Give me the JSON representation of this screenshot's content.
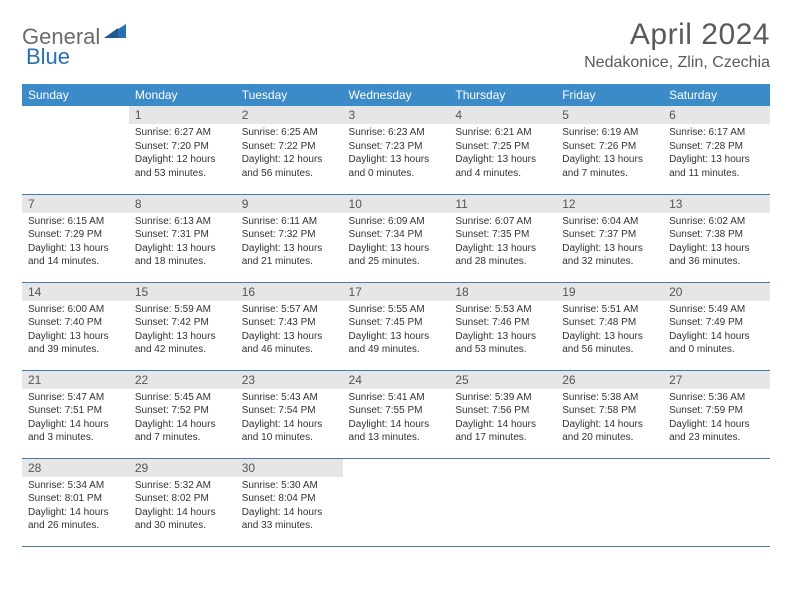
{
  "logo": {
    "general": "General",
    "blue": "Blue"
  },
  "title": "April 2024",
  "location": "Nedakonice, Zlin, Czechia",
  "colors": {
    "header_bg": "#3b8bc8",
    "header_text": "#ffffff",
    "daynum_bg": "#e6e6e6",
    "daynum_text": "#555555",
    "body_text": "#333333",
    "border": "#4a7ba8",
    "logo_gray": "#6b6b6b",
    "logo_blue": "#2a6fb5"
  },
  "weekdays": [
    "Sunday",
    "Monday",
    "Tuesday",
    "Wednesday",
    "Thursday",
    "Friday",
    "Saturday"
  ],
  "weeks": [
    [
      null,
      {
        "n": "1",
        "sr": "Sunrise: 6:27 AM",
        "ss": "Sunset: 7:20 PM",
        "d1": "Daylight: 12 hours",
        "d2": "and 53 minutes."
      },
      {
        "n": "2",
        "sr": "Sunrise: 6:25 AM",
        "ss": "Sunset: 7:22 PM",
        "d1": "Daylight: 12 hours",
        "d2": "and 56 minutes."
      },
      {
        "n": "3",
        "sr": "Sunrise: 6:23 AM",
        "ss": "Sunset: 7:23 PM",
        "d1": "Daylight: 13 hours",
        "d2": "and 0 minutes."
      },
      {
        "n": "4",
        "sr": "Sunrise: 6:21 AM",
        "ss": "Sunset: 7:25 PM",
        "d1": "Daylight: 13 hours",
        "d2": "and 4 minutes."
      },
      {
        "n": "5",
        "sr": "Sunrise: 6:19 AM",
        "ss": "Sunset: 7:26 PM",
        "d1": "Daylight: 13 hours",
        "d2": "and 7 minutes."
      },
      {
        "n": "6",
        "sr": "Sunrise: 6:17 AM",
        "ss": "Sunset: 7:28 PM",
        "d1": "Daylight: 13 hours",
        "d2": "and 11 minutes."
      }
    ],
    [
      {
        "n": "7",
        "sr": "Sunrise: 6:15 AM",
        "ss": "Sunset: 7:29 PM",
        "d1": "Daylight: 13 hours",
        "d2": "and 14 minutes."
      },
      {
        "n": "8",
        "sr": "Sunrise: 6:13 AM",
        "ss": "Sunset: 7:31 PM",
        "d1": "Daylight: 13 hours",
        "d2": "and 18 minutes."
      },
      {
        "n": "9",
        "sr": "Sunrise: 6:11 AM",
        "ss": "Sunset: 7:32 PM",
        "d1": "Daylight: 13 hours",
        "d2": "and 21 minutes."
      },
      {
        "n": "10",
        "sr": "Sunrise: 6:09 AM",
        "ss": "Sunset: 7:34 PM",
        "d1": "Daylight: 13 hours",
        "d2": "and 25 minutes."
      },
      {
        "n": "11",
        "sr": "Sunrise: 6:07 AM",
        "ss": "Sunset: 7:35 PM",
        "d1": "Daylight: 13 hours",
        "d2": "and 28 minutes."
      },
      {
        "n": "12",
        "sr": "Sunrise: 6:04 AM",
        "ss": "Sunset: 7:37 PM",
        "d1": "Daylight: 13 hours",
        "d2": "and 32 minutes."
      },
      {
        "n": "13",
        "sr": "Sunrise: 6:02 AM",
        "ss": "Sunset: 7:38 PM",
        "d1": "Daylight: 13 hours",
        "d2": "and 36 minutes."
      }
    ],
    [
      {
        "n": "14",
        "sr": "Sunrise: 6:00 AM",
        "ss": "Sunset: 7:40 PM",
        "d1": "Daylight: 13 hours",
        "d2": "and 39 minutes."
      },
      {
        "n": "15",
        "sr": "Sunrise: 5:59 AM",
        "ss": "Sunset: 7:42 PM",
        "d1": "Daylight: 13 hours",
        "d2": "and 42 minutes."
      },
      {
        "n": "16",
        "sr": "Sunrise: 5:57 AM",
        "ss": "Sunset: 7:43 PM",
        "d1": "Daylight: 13 hours",
        "d2": "and 46 minutes."
      },
      {
        "n": "17",
        "sr": "Sunrise: 5:55 AM",
        "ss": "Sunset: 7:45 PM",
        "d1": "Daylight: 13 hours",
        "d2": "and 49 minutes."
      },
      {
        "n": "18",
        "sr": "Sunrise: 5:53 AM",
        "ss": "Sunset: 7:46 PM",
        "d1": "Daylight: 13 hours",
        "d2": "and 53 minutes."
      },
      {
        "n": "19",
        "sr": "Sunrise: 5:51 AM",
        "ss": "Sunset: 7:48 PM",
        "d1": "Daylight: 13 hours",
        "d2": "and 56 minutes."
      },
      {
        "n": "20",
        "sr": "Sunrise: 5:49 AM",
        "ss": "Sunset: 7:49 PM",
        "d1": "Daylight: 14 hours",
        "d2": "and 0 minutes."
      }
    ],
    [
      {
        "n": "21",
        "sr": "Sunrise: 5:47 AM",
        "ss": "Sunset: 7:51 PM",
        "d1": "Daylight: 14 hours",
        "d2": "and 3 minutes."
      },
      {
        "n": "22",
        "sr": "Sunrise: 5:45 AM",
        "ss": "Sunset: 7:52 PM",
        "d1": "Daylight: 14 hours",
        "d2": "and 7 minutes."
      },
      {
        "n": "23",
        "sr": "Sunrise: 5:43 AM",
        "ss": "Sunset: 7:54 PM",
        "d1": "Daylight: 14 hours",
        "d2": "and 10 minutes."
      },
      {
        "n": "24",
        "sr": "Sunrise: 5:41 AM",
        "ss": "Sunset: 7:55 PM",
        "d1": "Daylight: 14 hours",
        "d2": "and 13 minutes."
      },
      {
        "n": "25",
        "sr": "Sunrise: 5:39 AM",
        "ss": "Sunset: 7:56 PM",
        "d1": "Daylight: 14 hours",
        "d2": "and 17 minutes."
      },
      {
        "n": "26",
        "sr": "Sunrise: 5:38 AM",
        "ss": "Sunset: 7:58 PM",
        "d1": "Daylight: 14 hours",
        "d2": "and 20 minutes."
      },
      {
        "n": "27",
        "sr": "Sunrise: 5:36 AM",
        "ss": "Sunset: 7:59 PM",
        "d1": "Daylight: 14 hours",
        "d2": "and 23 minutes."
      }
    ],
    [
      {
        "n": "28",
        "sr": "Sunrise: 5:34 AM",
        "ss": "Sunset: 8:01 PM",
        "d1": "Daylight: 14 hours",
        "d2": "and 26 minutes."
      },
      {
        "n": "29",
        "sr": "Sunrise: 5:32 AM",
        "ss": "Sunset: 8:02 PM",
        "d1": "Daylight: 14 hours",
        "d2": "and 30 minutes."
      },
      {
        "n": "30",
        "sr": "Sunrise: 5:30 AM",
        "ss": "Sunset: 8:04 PM",
        "d1": "Daylight: 14 hours",
        "d2": "and 33 minutes."
      },
      null,
      null,
      null,
      null
    ]
  ]
}
